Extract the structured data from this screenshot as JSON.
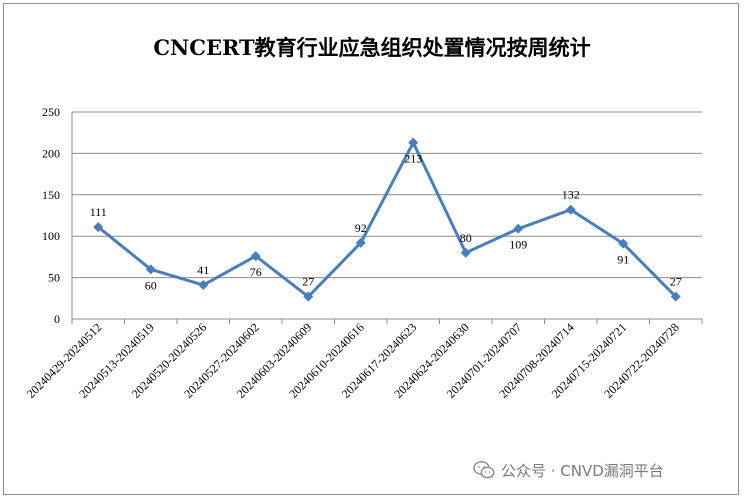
{
  "chart_data": {
    "type": "line",
    "title": "CNCERT教育行业应急组织处置情况按周统计",
    "xlabel": "",
    "ylabel": "",
    "ylim": [
      0,
      250
    ],
    "yticks": [
      0,
      50,
      100,
      150,
      200,
      250
    ],
    "grid": true,
    "legend": "none",
    "series_color": "#4a7ebb",
    "categories": [
      "20240429-20240512",
      "20240513-20240519",
      "20240520-20240526",
      "20240527-20240602",
      "20240603-20240609",
      "20240610-20240616",
      "20240617-20240623",
      "20240624-20240630",
      "20240701-20240707",
      "20240708-20240714",
      "20240715-20240721",
      "20240722-20240728"
    ],
    "series": [
      {
        "values": [
          111,
          60,
          41,
          76,
          27,
          92,
          213,
          80,
          109,
          132,
          91,
          27
        ]
      }
    ],
    "data_label_placement": [
      "above",
      "below",
      "above",
      "below",
      "above",
      "above",
      "below",
      "above",
      "below",
      "above",
      "below",
      "above"
    ]
  },
  "watermark": {
    "text": "公众号 · CNVD漏洞平台",
    "icon": "wechat-icon"
  }
}
